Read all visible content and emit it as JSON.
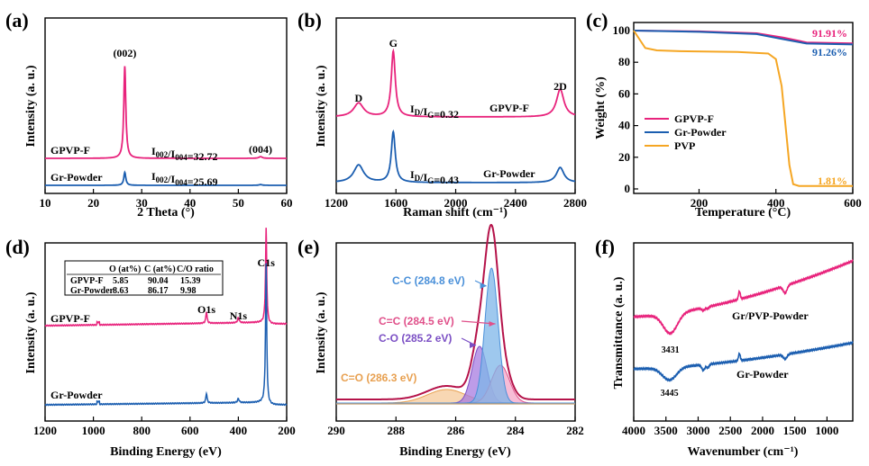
{
  "colors": {
    "gpvp": "#e8237c",
    "gr": "#1b5eb0",
    "pvp": "#f5a623",
    "blue_fill": "#7eb6e8",
    "pink_fill": "#f4a6c8",
    "violet_fill": "#a77be0",
    "orange_fill": "#f5c99a",
    "envelope": "#b5134a"
  },
  "chart_data": [
    {
      "id": "a",
      "type": "line",
      "panel_label": "(a)",
      "xlabel": "2 Theta (°)",
      "ylabel": "Intensity (a. u.)",
      "xlim": [
        10,
        60
      ],
      "xticks": [
        "10",
        "20",
        "30",
        "40",
        "50",
        "60"
      ],
      "series": [
        {
          "name": "GPVP-F",
          "baseline": 0.78,
          "peaks": [
            [
              26.5,
              6.4,
              0.25
            ],
            [
              54.6,
              0.12,
              0.4
            ]
          ]
        },
        {
          "name": "Gr-Powder",
          "baseline": 0.0,
          "peaks": [
            [
              26.5,
              0.9,
              0.25
            ],
            [
              54.6,
              0.05,
              0.4
            ]
          ]
        }
      ],
      "annotations": [
        {
          "text": "(002)",
          "x": 26.5,
          "y": 7.4
        },
        {
          "text": "(004)",
          "x": 54.6,
          "y": 1.05
        },
        {
          "text": "I002/I004=32.72",
          "x": 39,
          "y": 1.05
        },
        {
          "text": "I002/I004=25.69",
          "x": 39,
          "y": 0.25
        }
      ],
      "ratio_a": {
        "pre": "I",
        "s1": "002",
        "mid": "/I",
        "s2": "004",
        "val": "=32.72"
      },
      "ratio_b": {
        "pre": "I",
        "s1": "002",
        "mid": "/I",
        "s2": "004",
        "val": "=25.69"
      },
      "peak_label_1": "(002)",
      "peak_label_2": "(004)"
    },
    {
      "id": "b",
      "type": "line",
      "panel_label": "(b)",
      "xlabel": "Raman shift (cm⁻¹)",
      "ylabel": "Intensity (a. u.)",
      "xlim": [
        1200,
        2800
      ],
      "xticks": [
        "1200",
        "1600",
        "2000",
        "2400",
        "2800"
      ],
      "series": [
        {
          "name": "GPVP-F",
          "baseline": 0.55,
          "peaks": [
            [
              1350,
              0.11,
              40
            ],
            [
              1582,
              0.52,
              16
            ],
            [
              2700,
              0.22,
              30
            ]
          ]
        },
        {
          "name": "Gr-Powder",
          "baseline": 0.0,
          "peaks": [
            [
              1350,
              0.14,
              40
            ],
            [
              1582,
              0.4,
              16
            ],
            [
              2700,
              0.12,
              30
            ]
          ]
        }
      ],
      "peak_labels": [
        "D",
        "G",
        "2D"
      ],
      "ratio_a": {
        "pre": "I",
        "s1": "D",
        "mid": "/I",
        "s2": "G",
        "val": "=0.32"
      },
      "ratio_b": {
        "pre": "I",
        "s1": "D",
        "mid": "/I",
        "s2": "G",
        "val": "=0.43"
      }
    },
    {
      "id": "c",
      "type": "line",
      "panel_label": "(c)",
      "xlabel": "Temperature (°C)",
      "ylabel": "Weight (%)",
      "xlim": [
        30,
        600
      ],
      "ylim": [
        0,
        100
      ],
      "xticks": [
        "200",
        "400",
        "600"
      ],
      "yticks": [
        "0",
        "20",
        "40",
        "60",
        "80",
        "100"
      ],
      "series": [
        {
          "name": "GPVP-F",
          "x": [
            30,
            200,
            350,
            420,
            480,
            600
          ],
          "y": [
            100,
            99.5,
            98.3,
            95.5,
            92.5,
            91.91
          ]
        },
        {
          "name": "Gr-Powder",
          "x": [
            30,
            200,
            350,
            420,
            480,
            600
          ],
          "y": [
            100,
            99.2,
            97.8,
            94.5,
            91.8,
            91.26
          ]
        },
        {
          "name": "PVP",
          "x": [
            30,
            60,
            90,
            150,
            300,
            380,
            400,
            415,
            425,
            435,
            445,
            460,
            600
          ],
          "y": [
            100,
            89,
            87.5,
            87,
            86.5,
            85.5,
            82,
            65,
            40,
            15,
            3,
            1.9,
            1.81
          ]
        }
      ],
      "end_labels": [
        "91.91%",
        "91.26%",
        "1.81%"
      ],
      "legend": [
        "GPVP-F",
        "Gr-Powder",
        "PVP"
      ]
    },
    {
      "id": "d",
      "type": "line",
      "panel_label": "(d)",
      "xlabel": "Binding Energy (eV)",
      "ylabel": "Intensity (a. u.)",
      "xlim": [
        1200,
        200
      ],
      "xticks": [
        "1200",
        "1000",
        "800",
        "600",
        "400",
        "200"
      ],
      "series": [
        {
          "name": "GPVP-F",
          "baseline": 1.0,
          "peaks": [
            [
              532,
              0.12,
              3
            ],
            [
              400,
              0.05,
              4
            ],
            [
              285,
              0.95,
              3
            ]
          ]
        },
        {
          "name": "Gr-Powder",
          "baseline": 0.0,
          "peaks": [
            [
              532,
              0.1,
              3
            ],
            [
              400,
              0.04,
              4
            ],
            [
              285,
              1.4,
              3
            ]
          ]
        }
      ],
      "peak_labels": [
        "O1s",
        "N1s",
        "C1s"
      ],
      "table": {
        "headers": [
          "",
          "O (at%)",
          "C (at%)",
          "C/O ratio"
        ],
        "rows": [
          [
            "GPVP-F",
            "5.85",
            "90.04",
            "15.39"
          ],
          [
            "Gr-Powder",
            "8.63",
            "86.17",
            "9.98"
          ]
        ]
      }
    },
    {
      "id": "e",
      "type": "area",
      "panel_label": "(e)",
      "xlabel": "Binding Energy (eV)",
      "ylabel": "Intensity (a. u.)",
      "xlim": [
        290,
        282
      ],
      "xticks": [
        "290",
        "288",
        "286",
        "284",
        "282"
      ],
      "components": [
        {
          "name": "C-C (284.8 eV)",
          "center": 284.8,
          "height": 1.0,
          "width": 0.22
        },
        {
          "name": "C=C (284.5 eV)",
          "center": 284.5,
          "height": 0.28,
          "width": 0.3
        },
        {
          "name": "C-O (285.2 eV)",
          "center": 285.2,
          "height": 0.42,
          "width": 0.25
        },
        {
          "name": "C=O (286.3 eV)",
          "center": 286.3,
          "height": 0.1,
          "width": 0.65
        }
      ]
    },
    {
      "id": "f",
      "type": "line",
      "panel_label": "(f)",
      "xlabel": "Wavenumber (cm⁻¹)",
      "ylabel": "Transmittance (a. u.)",
      "xlim": [
        4000,
        600
      ],
      "xticks": [
        "4000",
        "3500",
        "3000",
        "2500",
        "2000",
        "1500",
        "1000"
      ],
      "series": [
        {
          "name": "Gr/PVP-Powder",
          "offset": 0.55
        },
        {
          "name": "Gr-Powder",
          "offset": 0.0
        }
      ],
      "peak_labels": [
        "3431",
        "3445"
      ]
    }
  ],
  "legend_c": [
    "GPVP-F",
    "Gr-Powder",
    "PVP"
  ],
  "labels": {
    "a_series1": "GPVP-F",
    "a_series2": "Gr-Powder",
    "b_series1": "GPVP-F",
    "b_series2": "Gr-Powder",
    "d_series1": "GPVP-F",
    "d_series2": "Gr-Powder",
    "f_series1": "Gr/PVP-Powder",
    "f_series2": "Gr-Powder",
    "b_D": "D",
    "b_G": "G",
    "b_2D": "2D",
    "d_O": "O1s",
    "d_N": "N1s",
    "d_C": "C1s",
    "f_p1": "3431",
    "f_p2": "3445",
    "c_end1": "91.91%",
    "c_end2": "91.26%",
    "c_end3": "1.81%"
  }
}
